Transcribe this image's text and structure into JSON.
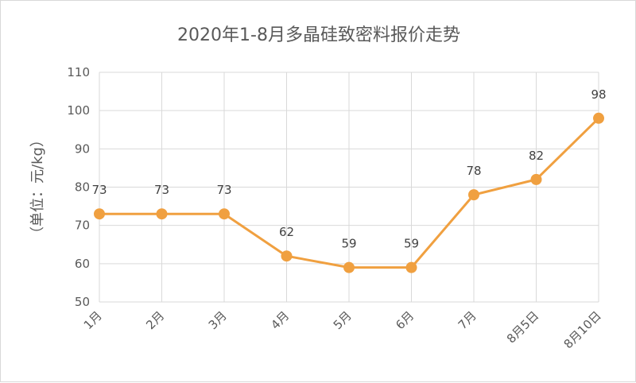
{
  "chart_data": {
    "type": "line",
    "title": "2020年1-8月多晶硅致密料报价走势",
    "ylabel": "（单位：元/kg）",
    "xlabel": "",
    "categories": [
      "1月",
      "2月",
      "3月",
      "4月",
      "5月",
      "6月",
      "7月",
      "8月5日",
      "8月10日"
    ],
    "series": [
      {
        "values": [
          73,
          73,
          73,
          62,
          59,
          59,
          78,
          82,
          98
        ],
        "color": "#f0a040"
      }
    ],
    "ylim": [
      50,
      110
    ],
    "yticks": [
      50,
      60,
      70,
      80,
      90,
      100,
      110
    ],
    "grid": true,
    "legend": "none"
  }
}
